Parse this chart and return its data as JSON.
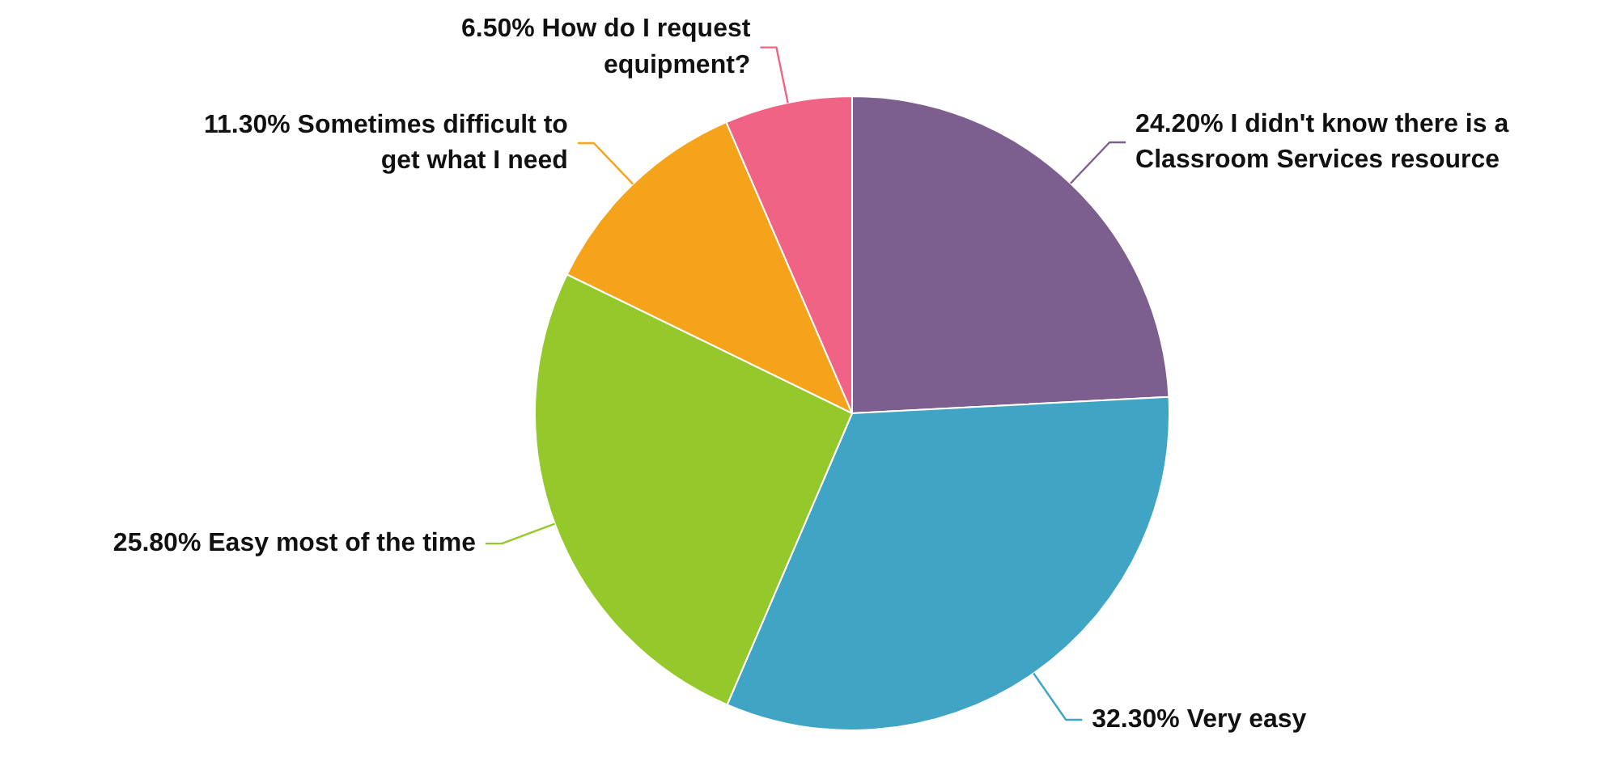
{
  "chart_data": {
    "type": "pie",
    "categories": [
      "I didn't know there is a Classroom Services resource",
      "Very easy",
      "Easy most of the time",
      "Sometimes difficult to get what I need",
      "How do I request equipment?"
    ],
    "values": [
      24.2,
      32.3,
      25.8,
      11.3,
      6.5
    ],
    "value_labels": [
      "24.20%",
      "32.30%",
      "25.80%",
      "11.30%",
      "6.50%"
    ],
    "colors": [
      "#7d5f8f",
      "#40a4c4",
      "#95c92b",
      "#f5a31b",
      "#f06384"
    ]
  }
}
